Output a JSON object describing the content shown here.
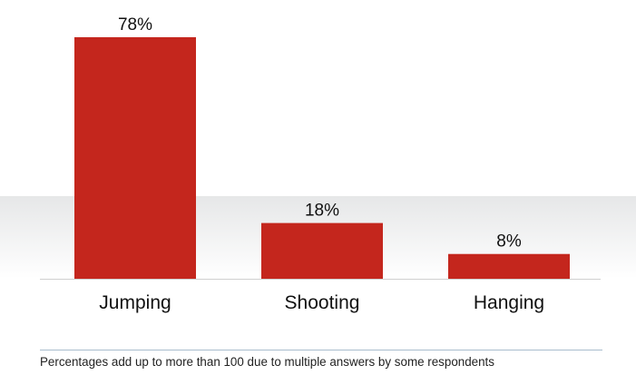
{
  "chart_data": {
    "type": "bar",
    "categories": [
      "Jumping",
      "Shooting",
      "Hanging"
    ],
    "values": [
      78,
      18,
      8
    ],
    "value_labels": [
      "78%",
      "18%",
      "8%"
    ],
    "unit": "%",
    "ylim": [
      0,
      78
    ],
    "title": "",
    "xlabel": "",
    "ylabel": "",
    "grid": false,
    "bar_color": "#c4261d",
    "band_color": "#e9eaeb"
  },
  "footnote": "Percentages add up to more than 100 due to multiple answers by some respondents",
  "colors": {
    "rule": "#a9bccd"
  }
}
